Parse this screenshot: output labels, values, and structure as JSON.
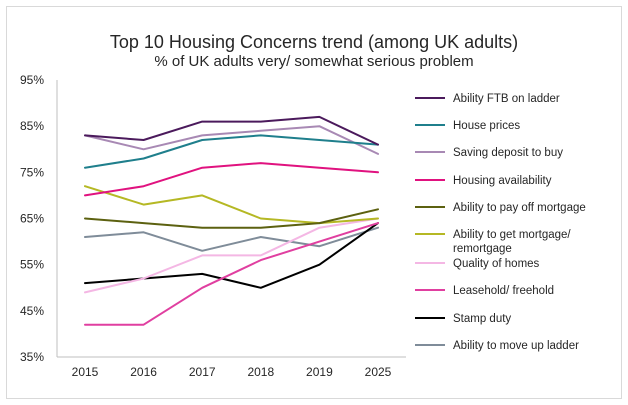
{
  "chart_data": {
    "type": "line",
    "title": "Top 10 Housing Concerns trend (among UK adults)",
    "subtitle": "% of UK adults very/ somewhat serious problem",
    "categories": [
      "2015",
      "2016",
      "2017",
      "2018",
      "2019",
      "2025"
    ],
    "ylim": [
      35,
      95
    ],
    "yticks": [
      "35%",
      "45%",
      "55%",
      "65%",
      "75%",
      "85%",
      "95%"
    ],
    "ytick_values": [
      35,
      45,
      55,
      65,
      75,
      85,
      95
    ],
    "grid": false,
    "legend_position": "right",
    "series": [
      {
        "name": "Ability FTB on ladder",
        "color": "#4b1a5c",
        "values": [
          83,
          82,
          86,
          86,
          87,
          81
        ]
      },
      {
        "name": "House prices",
        "color": "#1f7f8c",
        "values": [
          76,
          78,
          82,
          83,
          82,
          81
        ]
      },
      {
        "name": "Saving deposit to buy",
        "color": "#a889b4",
        "values": [
          83,
          80,
          83,
          84,
          85,
          79
        ]
      },
      {
        "name": "Housing availability",
        "color": "#e0127f",
        "values": [
          70,
          72,
          76,
          77,
          76,
          75
        ]
      },
      {
        "name": "Ability to pay off mortgage",
        "color": "#5c6110",
        "values": [
          65,
          64,
          63,
          63,
          64,
          67
        ]
      },
      {
        "name": "Ability to get mortgage/ remortgage",
        "legend_lines": [
          "Ability to get mortgage/",
          "remortgage"
        ],
        "color": "#b5b824",
        "values": [
          72,
          68,
          70,
          65,
          64,
          65
        ]
      },
      {
        "name": "Quality of homes",
        "color": "#f4b7e4",
        "values": [
          49,
          52,
          57,
          57,
          63,
          65
        ]
      },
      {
        "name": "Leasehold/ freehold",
        "color": "#e03fa0",
        "values": [
          42,
          42,
          50,
          56,
          60,
          64
        ]
      },
      {
        "name": "Stamp duty",
        "color": "#000000",
        "values": [
          51,
          52,
          53,
          50,
          55,
          64
        ]
      },
      {
        "name": "Ability to move up ladder",
        "color": "#7f8c99",
        "values": [
          61,
          62,
          58,
          61,
          59,
          63
        ]
      }
    ]
  }
}
